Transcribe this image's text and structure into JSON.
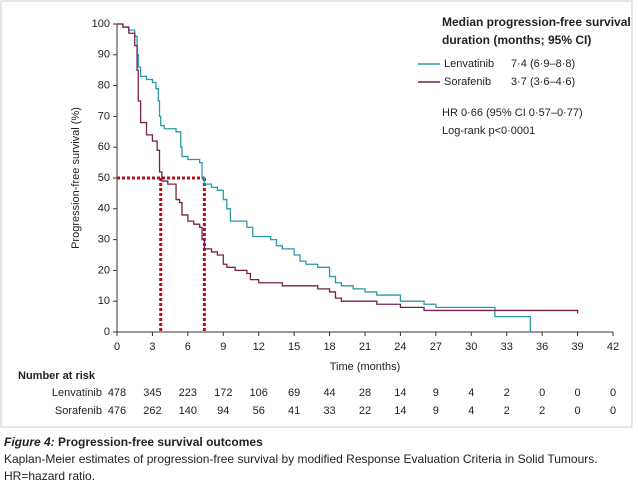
{
  "chart_data": {
    "type": "step",
    "step": true,
    "ylabel": "Progression-free survival (%)",
    "xlabel": "Time (months)",
    "xlim": [
      0,
      42
    ],
    "xticks": [
      0,
      3,
      6,
      9,
      12,
      15,
      18,
      21,
      24,
      27,
      30,
      33,
      36,
      39,
      42
    ],
    "ylim": [
      0,
      100
    ],
    "yticks": [
      0,
      10,
      20,
      30,
      40,
      50,
      60,
      70,
      80,
      90,
      100
    ],
    "legend_title": [
      "Median progression-free survival",
      "duration (months; 95% CI)"
    ],
    "legend_position": "upper right",
    "series": [
      {
        "name": "Lenvatinib",
        "color": "#2b9aa6",
        "median_label": "7·4 (6·9–8·8)",
        "x": [
          0,
          0.5,
          1,
          1.5,
          1.7,
          1.8,
          2,
          2.5,
          3,
          3.3,
          3.5,
          3.6,
          3.7,
          4,
          5,
          5.4,
          5.5,
          6,
          7,
          7.2,
          7.4,
          8,
          8.5,
          9,
          9.3,
          9.6,
          10,
          11,
          11.5,
          12,
          13,
          13.5,
          14,
          15,
          15.5,
          16,
          17,
          18,
          18.5,
          19,
          20,
          21,
          22,
          24,
          26,
          27,
          31,
          32,
          35,
          35
        ],
        "values": [
          100,
          99,
          98,
          96,
          90,
          86,
          83,
          82,
          81,
          79,
          75,
          70,
          67,
          66,
          65,
          60,
          57,
          56,
          55,
          50,
          48,
          47,
          46,
          43,
          40,
          36,
          36,
          34,
          31,
          31,
          30,
          28,
          27,
          25,
          23,
          22,
          21,
          18,
          16,
          15,
          14,
          13,
          12,
          10,
          9,
          8,
          8,
          5,
          5,
          0
        ],
        "at_risk": [
          478,
          345,
          223,
          172,
          106,
          69,
          44,
          28,
          14,
          9,
          4,
          2,
          0,
          0,
          0
        ]
      },
      {
        "name": "Sorafenib",
        "color": "#7b1f4e",
        "median_label": "3·7 (3·6–4·6)",
        "x": [
          0,
          0.5,
          1,
          1.5,
          1.7,
          1.8,
          2,
          2.5,
          3,
          3.4,
          3.6,
          3.8,
          4.3,
          5,
          5.3,
          5.5,
          6,
          6.5,
          7,
          7.2,
          7.4,
          8,
          8.5,
          9,
          9.3,
          10,
          11,
          11.3,
          12,
          14,
          17,
          18,
          18.5,
          19,
          22,
          24,
          26,
          33,
          39
        ],
        "values": [
          100,
          99,
          97,
          93,
          85,
          75,
          68,
          64,
          62,
          59,
          52,
          49,
          48,
          43,
          42,
          38,
          36,
          35,
          34,
          30,
          27,
          26,
          25,
          22,
          21,
          20,
          19,
          17,
          16,
          15,
          14,
          13,
          11,
          10,
          9,
          8,
          7,
          7,
          6
        ],
        "at_risk": [
          476,
          262,
          140,
          94,
          56,
          41,
          33,
          22,
          14,
          9,
          4,
          2,
          2,
          0,
          0
        ]
      }
    ],
    "reference_lines": {
      "y": 50,
      "x": [
        3.7,
        7.4
      ],
      "color": "#b5121b"
    },
    "annotations": [
      "HR 0·66 (95% CI 0·57–0·77)",
      "Log-rank p<0·0001"
    ],
    "at_risk_title": "Number at risk"
  },
  "caption": {
    "label": "Figure 4:",
    "title": "Progression-free survival outcomes",
    "text": "Kaplan-Meier estimates of progression-free survival by modified Response Evaluation Criteria in Solid Tumours. HR=hazard ratio."
  }
}
